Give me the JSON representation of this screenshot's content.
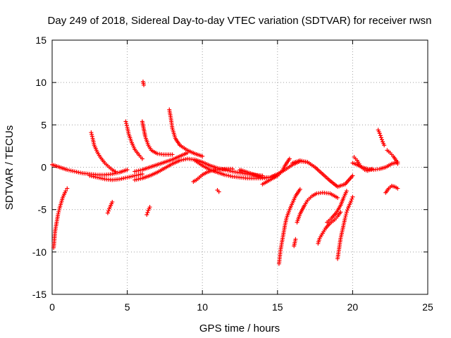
{
  "chart_data": {
    "type": "scatter",
    "title": "Day 249 of 2018, Sidereal Day-to-day VTEC variation (SDTVAR) for receiver rwsn",
    "xlabel": "GPS time / hours",
    "ylabel": "SDTVAR / TECUs",
    "xlim": [
      0,
      25
    ],
    "ylim": [
      -15,
      15
    ],
    "xticks": [
      "0",
      "5",
      "10",
      "15",
      "20",
      "25"
    ],
    "yticks": [
      "15",
      "10",
      "5",
      "0",
      "-5",
      "-10",
      "-15"
    ],
    "grid": true,
    "marker": "plus",
    "color": "#ff0000",
    "series": [
      {
        "name": "arc-main-early",
        "x": [
          0.0,
          0.5,
          1.0,
          1.5,
          2.0,
          2.5,
          3.0,
          3.5,
          4.0,
          4.5,
          5.0
        ],
        "y": [
          0.3,
          0.0,
          -0.3,
          -0.5,
          -0.7,
          -0.8,
          -0.9,
          -0.9,
          -0.8,
          -0.6,
          -0.3
        ]
      },
      {
        "name": "arc-drop-0",
        "x": [
          0.1,
          0.15,
          0.2,
          0.3,
          0.4,
          0.5,
          0.6,
          0.7,
          0.8,
          0.9,
          1.0
        ],
        "y": [
          -9.5,
          -8.5,
          -7.5,
          -6.5,
          -5.5,
          -4.8,
          -4.2,
          -3.6,
          -3.2,
          -2.8,
          -2.5
        ]
      },
      {
        "name": "arc-rise-2.6",
        "x": [
          2.6,
          2.7,
          2.8,
          3.0,
          3.2,
          3.5,
          3.8,
          4.0,
          4.2
        ],
        "y": [
          4.1,
          3.4,
          2.6,
          1.8,
          1.2,
          0.5,
          0.0,
          -0.3,
          -0.5
        ]
      },
      {
        "name": "arc-low-3",
        "x": [
          2.5,
          3.0,
          3.5,
          4.0,
          4.5,
          5.0,
          5.5,
          6.0
        ],
        "y": [
          -1.0,
          -1.2,
          -1.4,
          -1.5,
          -1.4,
          -1.2,
          -1.0,
          -0.8
        ]
      },
      {
        "name": "cluster-3.8",
        "x": [
          3.7,
          3.8,
          3.9,
          4.0
        ],
        "y": [
          -5.4,
          -4.9,
          -4.5,
          -4.1
        ]
      },
      {
        "name": "arc-rise-4.9",
        "x": [
          4.9,
          5.0,
          5.1,
          5.3,
          5.5,
          5.8,
          6.0
        ],
        "y": [
          5.4,
          4.7,
          3.9,
          2.9,
          2.1,
          1.4,
          1.0
        ]
      },
      {
        "name": "arc-rise-6",
        "x": [
          6.0,
          6.1,
          6.2,
          6.4,
          6.6,
          7.0,
          7.4,
          8.0
        ],
        "y": [
          5.4,
          4.5,
          3.6,
          2.6,
          2.0,
          1.6,
          1.5,
          1.5
        ]
      },
      {
        "name": "outlier-6",
        "x": [
          6.05,
          6.1
        ],
        "y": [
          10.1,
          9.7
        ]
      },
      {
        "name": "cluster-6.4",
        "x": [
          6.3,
          6.4,
          6.5
        ],
        "y": [
          -5.6,
          -5.1,
          -4.7
        ]
      },
      {
        "name": "arc-rise-7.8",
        "x": [
          7.8,
          7.9,
          8.0,
          8.2,
          8.5,
          9.0,
          9.5,
          10.0
        ],
        "y": [
          6.8,
          5.8,
          4.6,
          3.4,
          2.6,
          2.0,
          1.6,
          1.3
        ]
      },
      {
        "name": "arc-mid-hump",
        "x": [
          5.5,
          6.0,
          6.5,
          7.0,
          7.5,
          8.0,
          8.5,
          9.0,
          9.5,
          10.0,
          10.5,
          11.0,
          12.0,
          13.0,
          14.0
        ],
        "y": [
          -1.5,
          -1.3,
          -1.0,
          -0.6,
          -0.1,
          0.4,
          0.8,
          1.0,
          0.9,
          0.6,
          0.2,
          -0.1,
          -0.5,
          -0.8,
          -1.0
        ]
      },
      {
        "name": "arc-up-to-9",
        "x": [
          5.5,
          6.0,
          6.5,
          7.0,
          7.5,
          8.0,
          8.5,
          9.0
        ],
        "y": [
          -0.5,
          -0.3,
          0.0,
          0.3,
          0.6,
          0.9,
          1.3,
          1.7
        ]
      },
      {
        "name": "arc-down-10",
        "x": [
          9.5,
          10.0,
          10.5,
          11.0,
          11.5,
          12.0,
          12.5,
          13.0,
          13.5,
          14.0,
          14.5,
          15.0
        ],
        "y": [
          0.8,
          0.2,
          -0.3,
          -0.6,
          -0.9,
          -1.1,
          -1.2,
          -1.3,
          -1.3,
          -1.3,
          -1.2,
          -1.0
        ]
      },
      {
        "name": "arc-dip-9.5",
        "x": [
          9.4,
          9.6,
          9.8,
          10.0,
          10.3,
          10.6,
          11.0,
          11.5,
          12.0
        ],
        "y": [
          -1.7,
          -1.5,
          -1.2,
          -0.9,
          -0.6,
          -0.4,
          -0.3,
          -0.2,
          -0.2
        ]
      },
      {
        "name": "outlier-11",
        "x": [
          11.0,
          11.1
        ],
        "y": [
          -2.7,
          -2.9
        ]
      },
      {
        "name": "arc-15-16",
        "x": [
          12.5,
          13.0,
          13.5,
          14.0,
          14.5,
          15.0,
          15.5,
          16.0,
          16.5,
          17.0
        ],
        "y": [
          -0.3,
          -0.6,
          -0.9,
          -1.2,
          -1.2,
          -0.8,
          -0.3,
          0.3,
          0.7,
          0.6
        ]
      },
      {
        "name": "arc-14.8-rise",
        "x": [
          14.0,
          14.5,
          15.0,
          15.3,
          15.5,
          15.8
        ],
        "y": [
          -2.0,
          -1.5,
          -1.0,
          -0.5,
          0.2,
          1.0
        ]
      },
      {
        "name": "arc-drop-15",
        "x": [
          15.1,
          15.15,
          15.2,
          15.3,
          15.4,
          15.5,
          15.6,
          15.8,
          16.0,
          16.2,
          16.5
        ],
        "y": [
          -11.4,
          -10.6,
          -9.8,
          -8.8,
          -7.8,
          -6.8,
          -6.0,
          -5.0,
          -4.2,
          -3.4,
          -2.6
        ]
      },
      {
        "name": "cluster-16.1",
        "x": [
          16.1,
          16.15,
          16.2
        ],
        "y": [
          -9.3,
          -8.9,
          -8.5
        ]
      },
      {
        "name": "arc-16.3",
        "x": [
          16.3,
          16.5,
          16.8,
          17.0,
          17.3,
          17.6,
          18.0,
          18.5,
          19.0
        ],
        "y": [
          -6.5,
          -5.5,
          -4.5,
          -3.9,
          -3.4,
          -3.1,
          -3.0,
          -3.1,
          -3.6
        ]
      },
      {
        "name": "arc-hump-17",
        "x": [
          16.0,
          16.5,
          17.0,
          17.5,
          18.0,
          18.5,
          19.0,
          19.5,
          20.0
        ],
        "y": [
          0.5,
          0.8,
          0.6,
          0.0,
          -0.8,
          -1.6,
          -2.3,
          -2.0,
          -1.0
        ]
      },
      {
        "name": "arc-drop-17.7",
        "x": [
          17.7,
          17.8,
          18.0,
          18.2,
          18.5,
          18.8,
          19.0,
          19.2
        ],
        "y": [
          -9.0,
          -8.4,
          -7.8,
          -7.2,
          -6.6,
          -6.2,
          -5.8,
          -5.3
        ]
      },
      {
        "name": "arc-drop-19",
        "x": [
          19.0,
          19.1,
          19.2,
          19.3,
          19.4,
          19.5,
          19.6,
          19.7,
          19.8,
          19.9,
          20.0
        ],
        "y": [
          -10.8,
          -9.6,
          -8.4,
          -7.6,
          -6.8,
          -6.0,
          -5.3,
          -4.8,
          -4.4,
          -4.0,
          -3.5
        ]
      },
      {
        "name": "arc-18.5-19.5",
        "x": [
          18.3,
          18.6,
          18.9,
          19.2,
          19.4,
          19.6
        ],
        "y": [
          -6.5,
          -6.0,
          -5.4,
          -4.5,
          -3.6,
          -2.8
        ]
      },
      {
        "name": "arc-end-20",
        "x": [
          20.0,
          20.3,
          20.6,
          21.0,
          21.4,
          21.8,
          22.2,
          22.6,
          23.0
        ],
        "y": [
          0.5,
          0.3,
          0.0,
          -0.2,
          -0.3,
          -0.2,
          0.0,
          0.4,
          0.6
        ]
      },
      {
        "name": "arc-21.7",
        "x": [
          21.7,
          21.8,
          21.9,
          22.0,
          22.1
        ],
        "y": [
          4.4,
          4.0,
          3.5,
          3.0,
          2.6
        ]
      },
      {
        "name": "arc-22.5",
        "x": [
          22.3,
          22.5,
          22.7,
          22.9,
          23.0
        ],
        "y": [
          2.0,
          1.7,
          1.3,
          0.8,
          0.4
        ]
      },
      {
        "name": "arc-22.2-low",
        "x": [
          22.2,
          22.4,
          22.6,
          22.8,
          23.0
        ],
        "y": [
          -3.0,
          -2.5,
          -2.2,
          -2.3,
          -2.5
        ]
      },
      {
        "name": "arc-20.2",
        "x": [
          20.1,
          20.3,
          20.5,
          20.8,
          21.0,
          21.3
        ],
        "y": [
          1.2,
          0.8,
          0.2,
          -0.3,
          -0.4,
          -0.2
        ]
      }
    ]
  }
}
